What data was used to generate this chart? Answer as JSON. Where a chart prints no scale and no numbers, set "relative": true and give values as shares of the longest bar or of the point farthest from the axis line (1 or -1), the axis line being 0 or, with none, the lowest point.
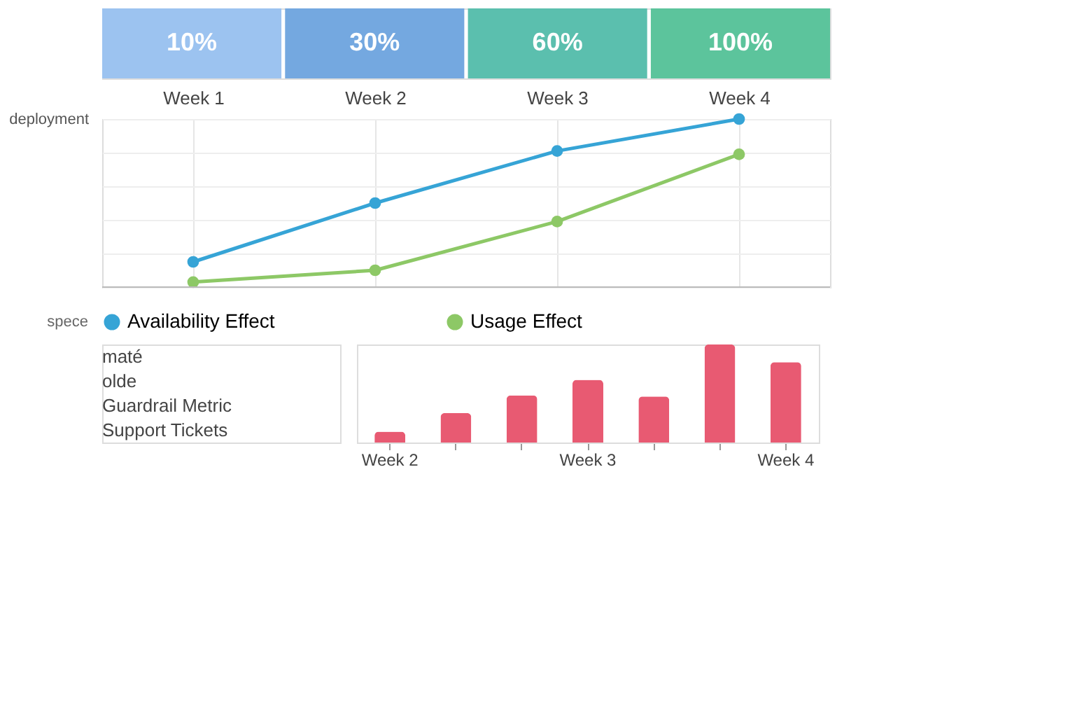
{
  "chart_data": [
    {
      "type": "other",
      "categories": [
        null,
        null,
        null,
        null
      ],
      "value_labels": [
        "10%",
        "30%",
        "60%",
        "100%"
      ],
      "colors": [
        "#9cc3f0",
        "#74a8e0",
        "#5bbfae",
        "#5cc49c"
      ]
    },
    {
      "type": "line",
      "relative": true,
      "categories": [
        "Week 1",
        "Week 2",
        "Week 3",
        "Week 4"
      ],
      "ylabel": "deployment",
      "marker": "circle",
      "line_style": "solid",
      "grid": true,
      "legend": "bottom",
      "annotations": [
        "spece"
      ],
      "series": [
        {
          "name": "Availability Effect",
          "color": "#36a4d6",
          "values": [
            0.15,
            0.5,
            0.81,
            1.0
          ]
        },
        {
          "name": "Usage Effect",
          "color": "#8dc866",
          "values": [
            0.03,
            0.1,
            0.39,
            0.79
          ]
        }
      ]
    },
    {
      "type": "bar",
      "relative": true,
      "categories": [
        "Week 2",
        null,
        null,
        "Week 3",
        null,
        null,
        "Week 4"
      ],
      "values": [
        0.11,
        0.3,
        0.48,
        0.64,
        0.47,
        1.0,
        0.82
      ],
      "color": "#e85a72",
      "tick_labels": "x",
      "grid": false,
      "annotations": [
        "maté",
        "olde",
        "Guardrail Metric",
        "Support Tickets"
      ]
    }
  ]
}
